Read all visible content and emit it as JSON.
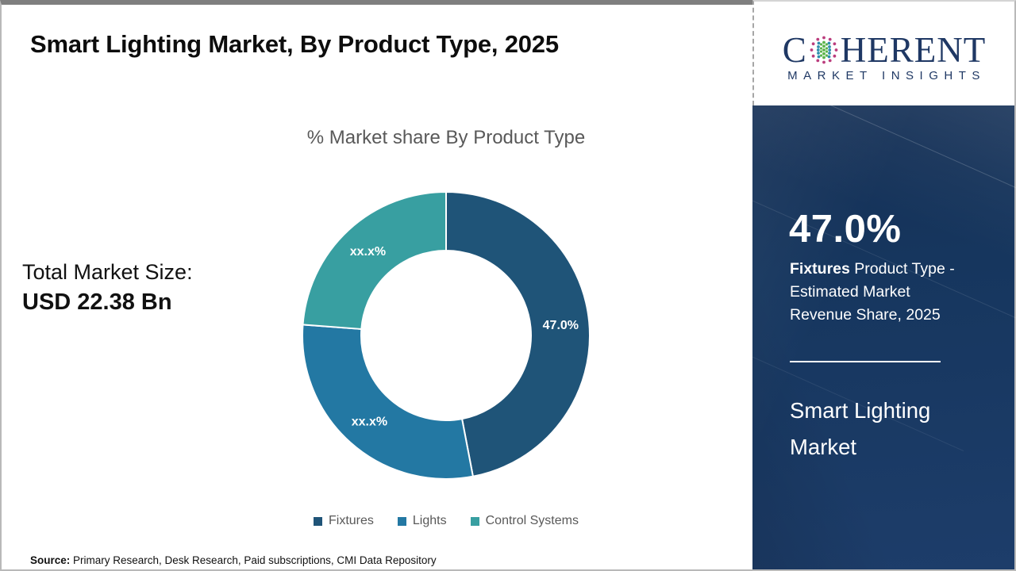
{
  "page": {
    "title": "Smart Lighting Market, By Product Type, 2025",
    "source_label": "Source:",
    "source_text": " Primary Research, Desk Research, Paid subscriptions, CMI Data Repository"
  },
  "total_market": {
    "label": "Total Market Size:",
    "value": "USD 22.38 Bn"
  },
  "logo": {
    "brand_left": "C",
    "brand_right": "HERENT",
    "brand_bottom": "MARKET INSIGHTS",
    "brand_color": "#1f3864",
    "globe_icon_colors": {
      "outer": "#bb3d7d",
      "mid": "#2f8fae",
      "center": "#5cb44a"
    }
  },
  "sidebar": {
    "stat_value": "47.0%",
    "highlight_label": "Fixtures",
    "highlight_rest": " Product Type - Estimated Market Revenue Share, 2025",
    "market_name": "Smart Lighting Market",
    "background_color": "#16365e"
  },
  "chart_data": {
    "type": "pie",
    "donut": true,
    "title": "% Market share By Product Type",
    "categories": [
      "Fixtures",
      "Lights",
      "Control Systems"
    ],
    "values": [
      47.0,
      29.2,
      23.8
    ],
    "slice_labels": [
      "47.0%",
      "xx.x%",
      "xx.x%"
    ],
    "colors": [
      "#1f5478",
      "#2378a3",
      "#389fa1"
    ],
    "label_color": "#ffffff",
    "start_angle_deg": 0,
    "direction": "clockwise",
    "legend_position": "bottom",
    "note": "Lights and Control Systems shares are masked as xx.x% on the chart; numeric values estimated from arc angles"
  }
}
